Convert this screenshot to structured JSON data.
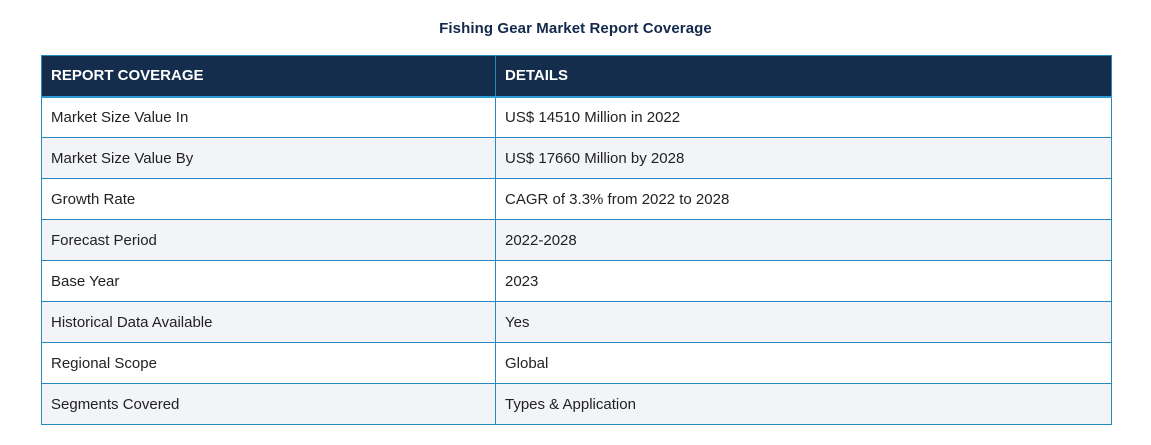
{
  "title": "Fishing Gear Market Report Coverage",
  "table": {
    "headers": [
      "REPORT COVERAGE",
      "DETAILS"
    ],
    "rows": [
      [
        "Market Size Value In",
        "US$ 14510 Million in 2022"
      ],
      [
        "Market Size Value By",
        "US$ 17660 Million by 2028"
      ],
      [
        "Growth Rate",
        "CAGR of 3.3% from 2022 to 2028"
      ],
      [
        "Forecast Period",
        "2022-2028"
      ],
      [
        "Base Year",
        "2023"
      ],
      [
        "Historical Data Available",
        "Yes"
      ],
      [
        "Regional Scope",
        "Global"
      ],
      [
        "Segments Covered",
        "Types & Application"
      ]
    ]
  },
  "colors": {
    "header_bg": "#142d4c",
    "border": "#2a87bf",
    "stripe": "#f2f4f8"
  }
}
